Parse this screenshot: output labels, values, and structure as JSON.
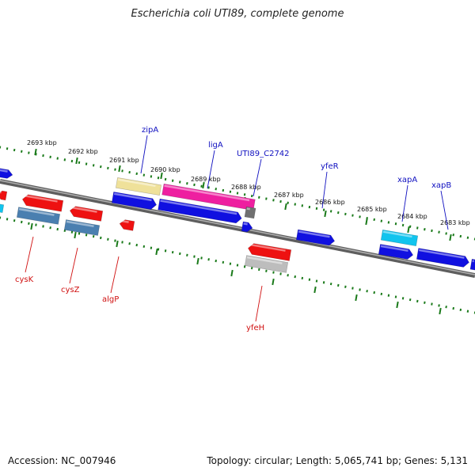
{
  "title": "Escherichia coli UTI89, complete genome",
  "footer": {
    "accession": "Accession: NC_007946",
    "summary": "Topology: circular; Length: 5,065,741 bp; Genes: 5,131"
  },
  "colors": {
    "backbone": "#7a7a7a",
    "tick": "#1a7a1a",
    "forward_label": "#1010c0",
    "reverse_label": "#d01010",
    "cds_blue": "#1010e0",
    "cds_red": "#ee1111",
    "steel": "#4a7fb0",
    "cyan": "#11c4ee",
    "pink": "#ee1fa0",
    "khaki": "#efe19a",
    "grey": "#bdbdbd"
  },
  "kbp_ticks": [
    "2693 kbp",
    "2692 kbp",
    "2691 kbp",
    "2690 kbp",
    "2689 kbp",
    "2688 kbp",
    "2687 kbp",
    "2686 kbp",
    "2685 kbp",
    "2684 kbp",
    "2683 kbp"
  ],
  "forward_labels": [
    "zipA",
    "ligA",
    "UTI89_C2742",
    "yfeR",
    "xapA",
    "xapB"
  ],
  "reverse_labels": [
    "cysK",
    "cysZ",
    "algP",
    "yfeH"
  ]
}
